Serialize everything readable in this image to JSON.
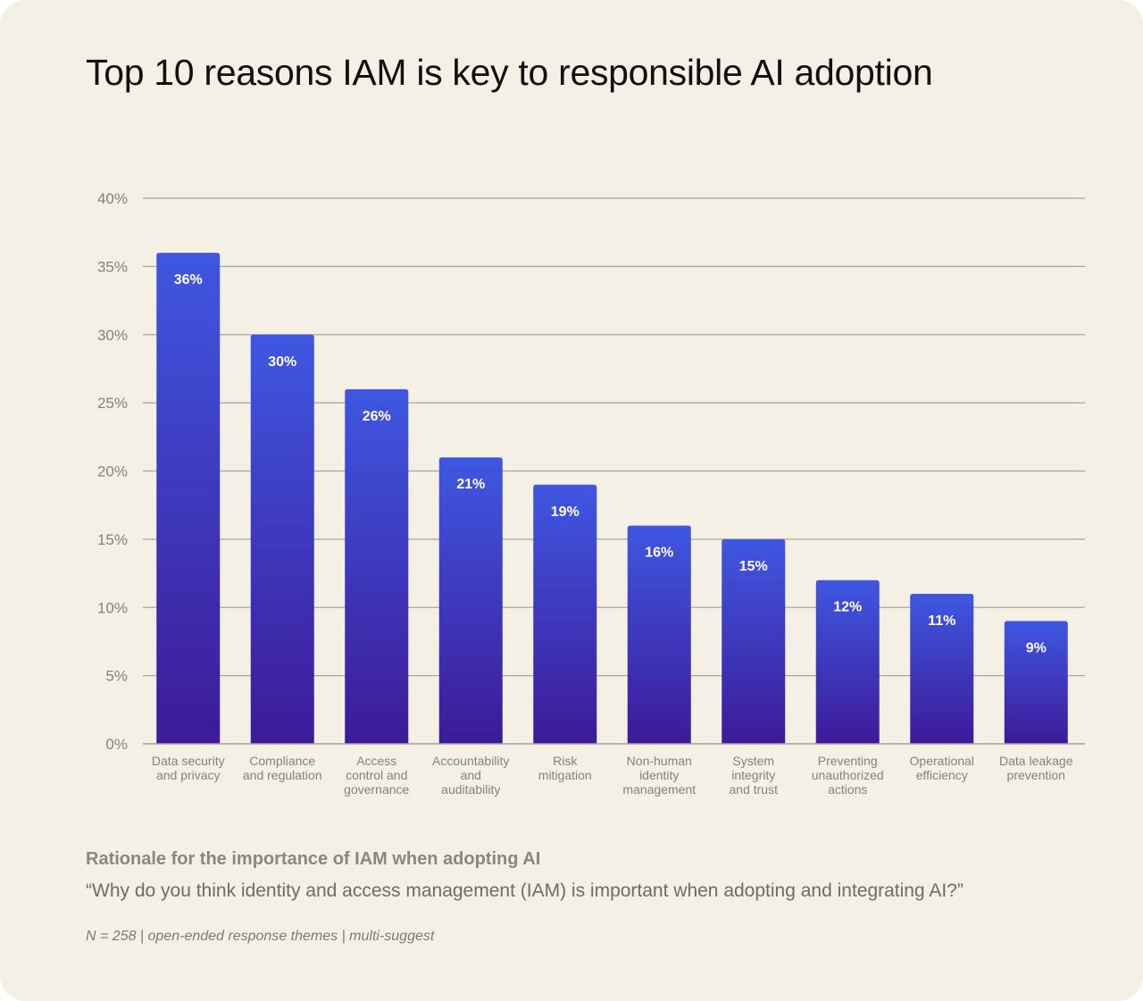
{
  "chart_data": {
    "type": "bar",
    "title": "Top 10 reasons IAM is key to responsible AI adoption",
    "categories": [
      [
        "Data security",
        "and privacy"
      ],
      [
        "Compliance",
        "and regulation"
      ],
      [
        "Access",
        "control and",
        "governance"
      ],
      [
        "Accountability",
        "and",
        "auditability"
      ],
      [
        "Risk",
        "mitigation"
      ],
      [
        "Non-human",
        "identity",
        "management"
      ],
      [
        "System",
        "integrity",
        "and trust"
      ],
      [
        "Preventing",
        "unauthorized",
        "actions"
      ],
      [
        "Operational",
        "efficiency"
      ],
      [
        "Data leakage",
        "prevention"
      ]
    ],
    "values": [
      36,
      30,
      26,
      21,
      19,
      16,
      15,
      12,
      11,
      9
    ],
    "data_labels": [
      "36%",
      "30%",
      "26%",
      "21%",
      "19%",
      "16%",
      "15%",
      "12%",
      "11%",
      "9%"
    ],
    "ylim": [
      0,
      40
    ],
    "yticks": [
      "0%",
      "5%",
      "10%",
      "15%",
      "20%",
      "25%",
      "30%",
      "35%",
      "40%"
    ],
    "grid": true,
    "legend": "none",
    "colors": {
      "bar_top": "#3f57e1",
      "bar_bottom": "#3d1a98",
      "grid": "#a8a49e",
      "background": "#f4f0e6"
    }
  },
  "footer": {
    "subtitle": "Rationale for the importance of IAM when adopting AI",
    "question": "“Why do you think identity and access management (IAM) is important when adopting and integrating AI?”",
    "note": "N = 258 | open-ended response themes | multi-suggest"
  }
}
